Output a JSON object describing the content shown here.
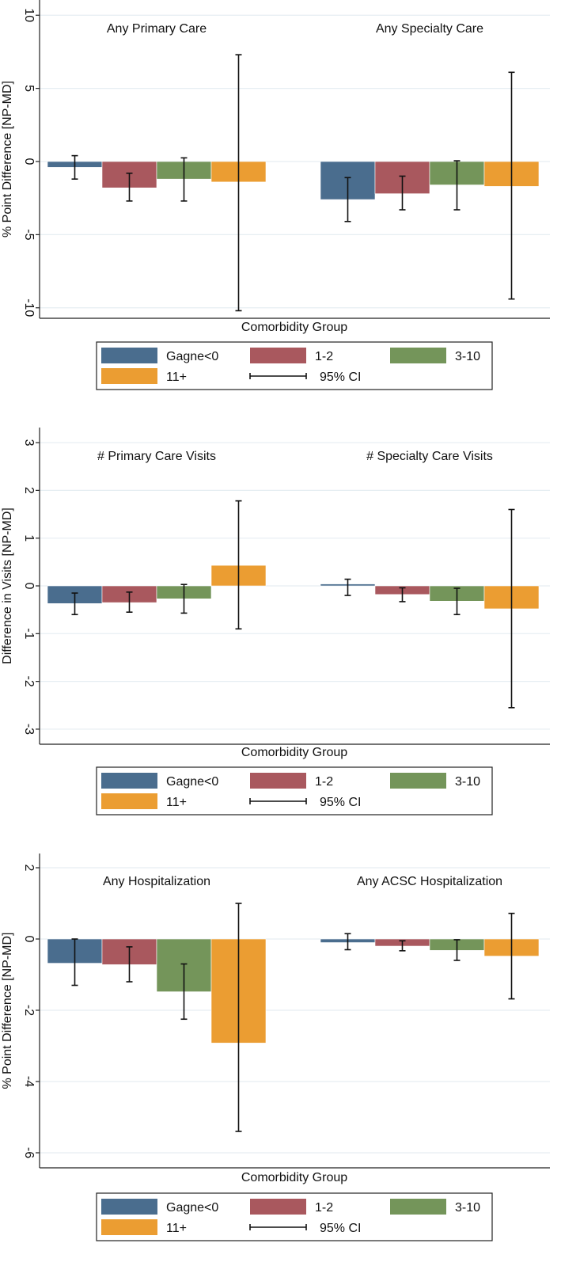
{
  "chart_data": [
    {
      "type": "bar",
      "ylabel": "% Point Difference [NP-MD]",
      "xlabel": "Comorbidity Group",
      "ylim": [
        -10.5,
        10.5
      ],
      "yticks": [
        10,
        5,
        0,
        -5,
        -10
      ],
      "ytick_labels": [
        "10",
        "5",
        "0",
        "-5",
        "-10"
      ],
      "grid": true,
      "panels": [
        "Any Primary Care",
        "Any Specialty Care"
      ],
      "groups": [
        "Gagne<0",
        "1-2",
        "3-10",
        "11+"
      ],
      "values": [
        [
          -0.4,
          -1.8,
          -1.2,
          -1.4
        ],
        [
          -2.6,
          -2.2,
          -1.6,
          -1.7
        ]
      ],
      "ci_low": [
        [
          -1.2,
          -2.7,
          -2.7,
          -10.2
        ],
        [
          -4.1,
          -3.3,
          -3.3,
          -9.4
        ]
      ],
      "ci_high": [
        [
          0.4,
          -0.8,
          0.25,
          7.3
        ],
        [
          -1.1,
          -1.0,
          0.05,
          6.1
        ]
      ],
      "legend": {
        "items": [
          "Gagne<0",
          "1-2",
          "3-10",
          "11+"
        ],
        "ci_label": "95% CI"
      }
    },
    {
      "type": "bar",
      "ylabel": "Difference in Visits [NP-MD]",
      "xlabel": "Comorbidity Group",
      "ylim": [
        -3.15,
        3.15
      ],
      "yticks": [
        3,
        2,
        1,
        0,
        -1,
        -2,
        -3
      ],
      "ytick_labels": [
        "3",
        "2",
        "1",
        "0",
        "-1",
        "-2",
        "-3"
      ],
      "grid": true,
      "panels": [
        "# Primary Care Visits",
        "# Specialty Care Visits"
      ],
      "groups": [
        "Gagne<0",
        "1-2",
        "3-10",
        "11+"
      ],
      "values": [
        [
          -0.37,
          -0.35,
          -0.27,
          0.43
        ],
        [
          0.04,
          -0.18,
          -0.32,
          -0.48
        ]
      ],
      "ci_low": [
        [
          -0.6,
          -0.55,
          -0.57,
          -0.9
        ],
        [
          -0.2,
          -0.33,
          -0.6,
          -2.55
        ]
      ],
      "ci_high": [
        [
          -0.15,
          -0.13,
          0.03,
          1.78
        ],
        [
          0.14,
          -0.04,
          -0.05,
          1.6
        ]
      ],
      "legend": {
        "items": [
          "Gagne<0",
          "1-2",
          "3-10",
          "11+"
        ],
        "ci_label": "95% CI"
      }
    },
    {
      "type": "bar",
      "ylabel": "% Point Difference [NP-MD]",
      "xlabel": "Comorbidity Group",
      "ylim": [
        -6.2,
        2.2
      ],
      "yticks": [
        2,
        0,
        -2,
        -4,
        -6
      ],
      "ytick_labels": [
        "2",
        "0",
        "-2",
        "-4",
        "-6"
      ],
      "grid": true,
      "panels": [
        "Any Hospitalization",
        "Any ACSC Hospitalization"
      ],
      "groups": [
        "Gagne<0",
        "1-2",
        "3-10",
        "11+"
      ],
      "values": [
        [
          -0.68,
          -0.72,
          -1.48,
          -2.92
        ],
        [
          -0.1,
          -0.2,
          -0.32,
          -0.48
        ]
      ],
      "ci_low": [
        [
          -1.3,
          -1.2,
          -2.25,
          -5.4
        ],
        [
          -0.3,
          -0.33,
          -0.6,
          -1.68
        ]
      ],
      "ci_high": [
        [
          0.0,
          -0.22,
          -0.7,
          1.0
        ],
        [
          0.15,
          -0.05,
          -0.02,
          0.72
        ]
      ],
      "legend": {
        "items": [
          "Gagne<0",
          "1-2",
          "3-10",
          "11+"
        ],
        "ci_label": "95% CI"
      }
    }
  ],
  "colors": {
    "series": [
      "#4a6d8e",
      "#a9585e",
      "#74955a",
      "#eb9d32"
    ],
    "grid": "#e6eef2",
    "axis": "#222222",
    "error_bar": "#111111"
  }
}
